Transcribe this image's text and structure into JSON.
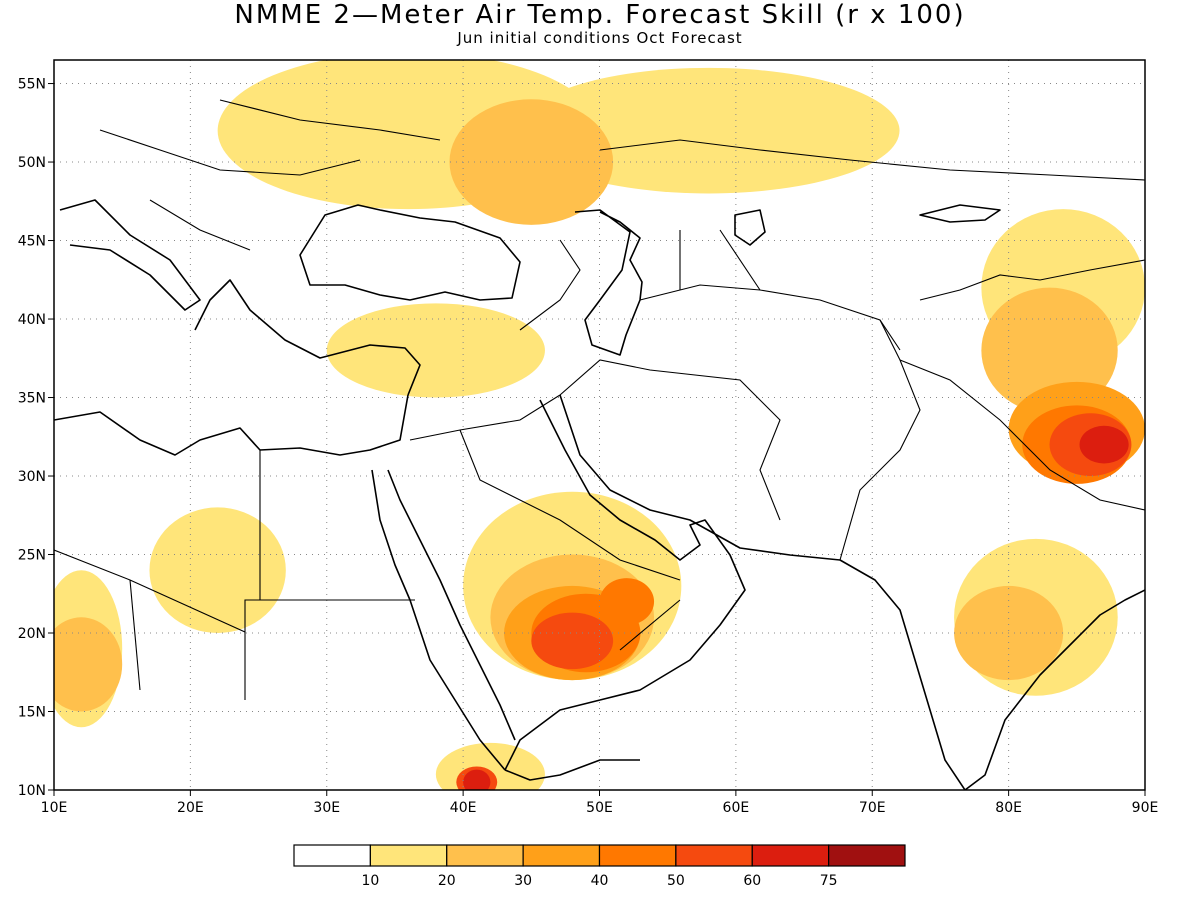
{
  "title": "NMME 2—Meter Air Temp. Forecast Skill (r x 100)",
  "subtitle": "Jun initial conditions  Oct Forecast",
  "lon_labels": [
    "10E",
    "20E",
    "30E",
    "40E",
    "50E",
    "60E",
    "70E",
    "80E",
    "90E"
  ],
  "lat_labels": [
    "10N",
    "15N",
    "20N",
    "25N",
    "30N",
    "35N",
    "40N",
    "45N",
    "50N",
    "55N"
  ],
  "colorbar": {
    "labels": [
      "10",
      "20",
      "30",
      "40",
      "50",
      "60",
      "75"
    ],
    "colors": [
      "#ffffff",
      "#ffe57a",
      "#ffc04c",
      "#ffa019",
      "#ff7800",
      "#f54a0f",
      "#dc1e0f",
      "#a01010"
    ]
  },
  "skill_blobs": [
    {
      "level": 1,
      "lon": 12,
      "lat": 19,
      "rx": 3,
      "ry": 5
    },
    {
      "level": 1,
      "lon": 22,
      "lat": 24,
      "rx": 5,
      "ry": 4
    },
    {
      "level": 1,
      "lon": 36,
      "lat": 52,
      "rx": 14,
      "ry": 5
    },
    {
      "level": 1,
      "lon": 58,
      "lat": 52,
      "rx": 14,
      "ry": 4
    },
    {
      "level": 1,
      "lon": 38,
      "lat": 38,
      "rx": 8,
      "ry": 3
    },
    {
      "level": 1,
      "lon": 48,
      "lat": 23,
      "rx": 8,
      "ry": 6
    },
    {
      "level": 1,
      "lon": 84,
      "lat": 42,
      "rx": 6,
      "ry": 5
    },
    {
      "level": 1,
      "lon": 82,
      "lat": 21,
      "rx": 6,
      "ry": 5
    },
    {
      "level": 1,
      "lon": 42,
      "lat": 11,
      "rx": 4,
      "ry": 2
    },
    {
      "level": 2,
      "lon": 45,
      "lat": 50,
      "rx": 6,
      "ry": 4
    },
    {
      "level": 2,
      "lon": 12,
      "lat": 18,
      "rx": 3,
      "ry": 3
    },
    {
      "level": 2,
      "lon": 48,
      "lat": 21,
      "rx": 6,
      "ry": 4
    },
    {
      "level": 2,
      "lon": 80,
      "lat": 20,
      "rx": 4,
      "ry": 3
    },
    {
      "level": 2,
      "lon": 83,
      "lat": 38,
      "rx": 5,
      "ry": 4
    },
    {
      "level": 3,
      "lon": 48,
      "lat": 20,
      "rx": 5,
      "ry": 3
    },
    {
      "level": 3,
      "lon": 85,
      "lat": 33,
      "rx": 5,
      "ry": 3
    },
    {
      "level": 4,
      "lon": 49,
      "lat": 20,
      "rx": 4,
      "ry": 2.5
    },
    {
      "level": 4,
      "lon": 85,
      "lat": 32,
      "rx": 4,
      "ry": 2.5
    },
    {
      "level": 4,
      "lon": 52,
      "lat": 22,
      "rx": 2,
      "ry": 1.5
    },
    {
      "level": 5,
      "lon": 48,
      "lat": 19.5,
      "rx": 3,
      "ry": 1.8
    },
    {
      "level": 5,
      "lon": 86,
      "lat": 32,
      "rx": 3,
      "ry": 2
    },
    {
      "level": 5,
      "lon": 41,
      "lat": 10.5,
      "rx": 1.5,
      "ry": 1
    },
    {
      "level": 6,
      "lon": 87,
      "lat": 32,
      "rx": 1.8,
      "ry": 1.2
    },
    {
      "level": 6,
      "lon": 41,
      "lat": 10.5,
      "rx": 1,
      "ry": 0.8
    }
  ]
}
